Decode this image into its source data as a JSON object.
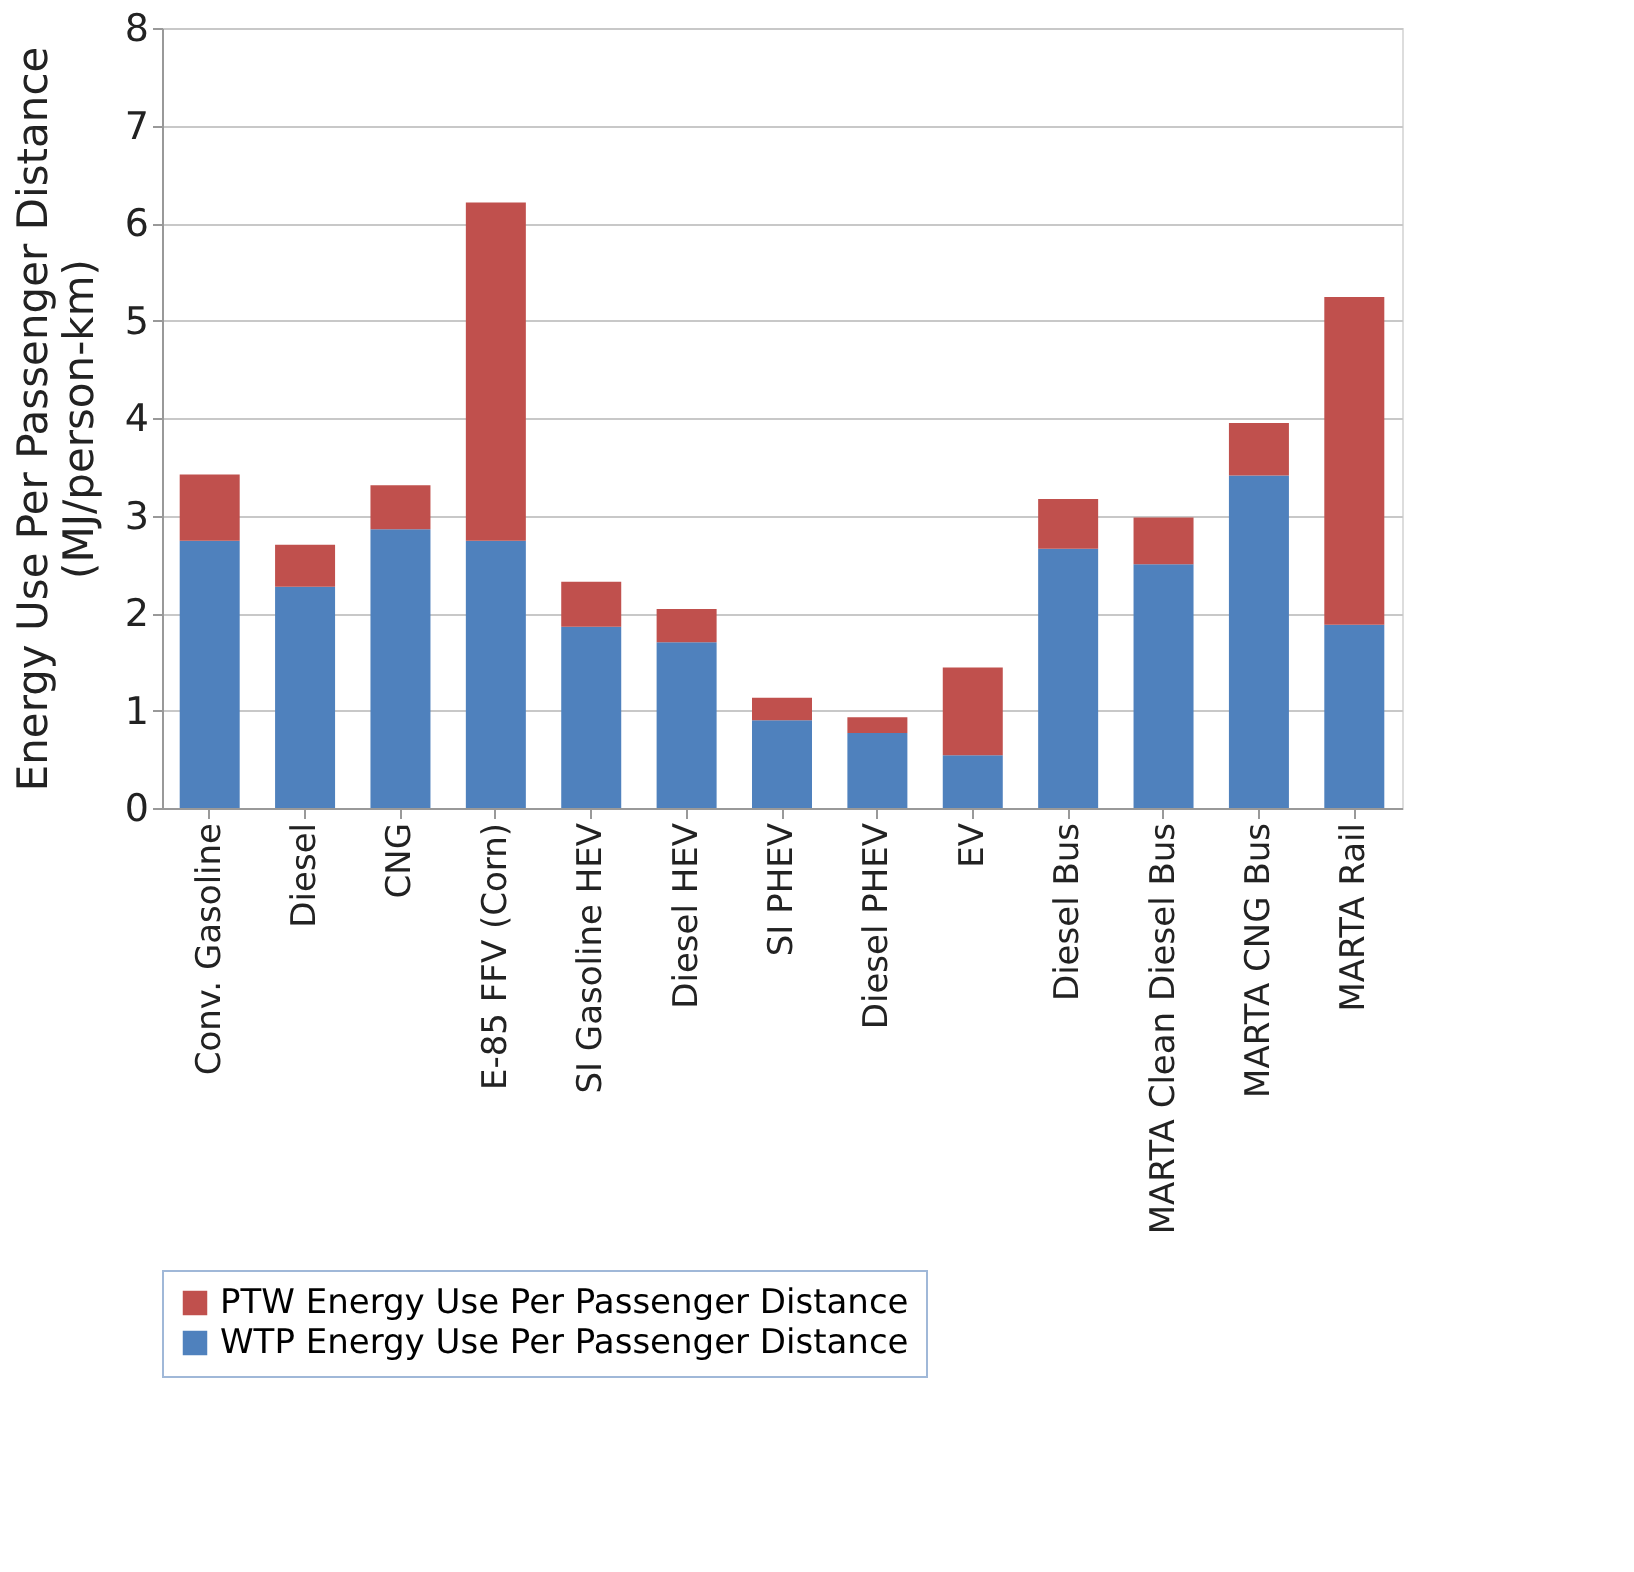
{
  "chart_data": {
    "type": "bar",
    "stacked": true,
    "ylabel": "Energy Use Per Passenger Distance\n(MJ/person-km)",
    "categories": [
      "Conv. Gasoline",
      "Diesel",
      "CNG",
      "E-85 FFV (Corn)",
      "SI Gasoline HEV",
      "Diesel HEV",
      "SI PHEV",
      "Diesel PHEV",
      "EV",
      "Diesel Bus",
      "MARTA Clean Diesel Bus",
      "MARTA CNG Bus",
      "MARTA Rail"
    ],
    "series": [
      {
        "name": "WTP Energy Use Per Passenger Distance",
        "color": "#4f81bd",
        "values": [
          2.74,
          2.27,
          2.86,
          2.74,
          1.86,
          1.7,
          0.9,
          0.77,
          0.54,
          2.66,
          2.5,
          3.41,
          1.88
        ]
      },
      {
        "name": "PTW Energy Use Per Passenger Distance",
        "color": "#c0504d",
        "values": [
          0.68,
          0.43,
          0.45,
          3.47,
          0.46,
          0.34,
          0.23,
          0.16,
          0.9,
          0.51,
          0.48,
          0.54,
          3.36
        ]
      }
    ],
    "ylim": [
      0,
      8
    ],
    "yticks": [
      0,
      1,
      2,
      3,
      4,
      5,
      6,
      7,
      8
    ],
    "grid": "y",
    "legend": "bottom"
  }
}
